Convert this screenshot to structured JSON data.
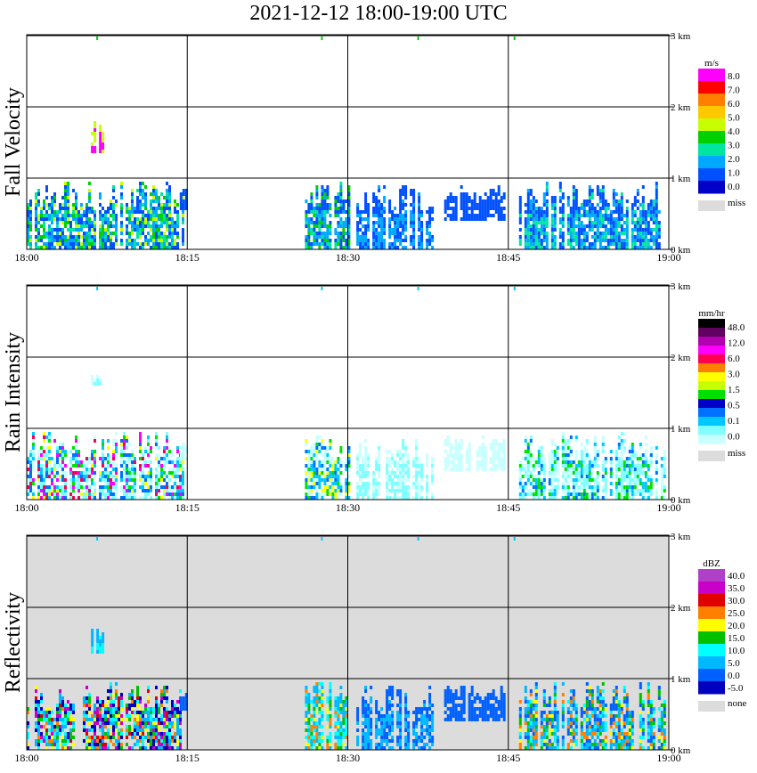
{
  "title": "2021-12-12   18:00-19:00 UTC",
  "colors": {
    "missing": "#dcdcdc",
    "axis": "#000000"
  },
  "chart_data": [
    {
      "type": "heatmap",
      "ylabel": "Fall Velocity",
      "x_tick_labels": [
        "18:00",
        "18:15",
        "18:30",
        "18:45",
        "19:00"
      ],
      "y_tick_labels": [
        "0 km",
        "1 km",
        "2 km",
        "3 km"
      ],
      "ylim_km": [
        0,
        3.1
      ],
      "background": "white",
      "colorbar": {
        "unit": "m/s",
        "labels": [
          "8.0",
          "7.0",
          "6.0",
          "5.0",
          "4.0",
          "3.0",
          "2.0",
          "1.0",
          "0.0"
        ],
        "colors": [
          "#ff00ff",
          "#ff0000",
          "#ff7f00",
          "#ffc800",
          "#c8ff00",
          "#00d000",
          "#00e6a0",
          "#00a8ff",
          "#0050ff",
          "#0000c8"
        ],
        "missing_label": "miss"
      },
      "echoes": [
        {
          "t0": 0.0,
          "t1": 14.5,
          "z0": 0.0,
          "z1": 0.95,
          "levels": [
            1,
            2,
            3,
            4,
            5
          ]
        },
        {
          "t0": 14.3,
          "t1": 15.0,
          "z0": 0.55,
          "z1": 0.85,
          "levels": [
            1
          ]
        },
        {
          "t0": 26.0,
          "t1": 30.0,
          "z0": 0.0,
          "z1": 0.95,
          "levels": [
            1,
            2,
            3,
            4
          ]
        },
        {
          "t0": 30.8,
          "t1": 38.0,
          "z0": 0.0,
          "z1": 0.9,
          "levels": [
            1,
            2
          ]
        },
        {
          "t0": 39.0,
          "t1": 44.5,
          "z0": 0.4,
          "z1": 0.9,
          "levels": [
            1
          ]
        },
        {
          "t0": 46.0,
          "t1": 59.5,
          "z0": 0.0,
          "z1": 0.95,
          "levels": [
            1,
            2,
            3
          ]
        },
        {
          "t0": 6.0,
          "t1": 7.0,
          "z0": 1.35,
          "z1": 1.8,
          "levels": [
            5,
            9
          ]
        }
      ]
    },
    {
      "type": "heatmap",
      "ylabel": "Rain Intensity",
      "x_tick_labels": [
        "18:00",
        "18:15",
        "18:30",
        "18:45",
        "19:00"
      ],
      "y_tick_labels": [
        "0 km",
        "1 km",
        "2 km",
        "3 km"
      ],
      "ylim_km": [
        0,
        3.1
      ],
      "background": "white",
      "colorbar": {
        "unit": "mm/hr",
        "labels": [
          "48.0",
          "12.0",
          "6.0",
          "3.0",
          "1.5",
          "0.5",
          "0.1",
          "0.0"
        ],
        "colors": [
          "#000000",
          "#600060",
          "#b000b0",
          "#ff00ff",
          "#ff0050",
          "#ff7f00",
          "#ffff00",
          "#c8ff00",
          "#00e000",
          "#0000c8",
          "#0070ff",
          "#00c8ff",
          "#7fffff",
          "#c8ffff"
        ],
        "missing_label": "miss"
      },
      "echoes": [
        {
          "t0": 0.0,
          "t1": 14.5,
          "z0": 0.0,
          "z1": 0.95,
          "levels": [
            0,
            1,
            2,
            3,
            5,
            7,
            9,
            10
          ]
        },
        {
          "t0": 14.3,
          "t1": 15.0,
          "z0": 0.55,
          "z1": 0.85,
          "levels": [
            0
          ]
        },
        {
          "t0": 26.0,
          "t1": 30.0,
          "z0": 0.0,
          "z1": 0.95,
          "levels": [
            0,
            2,
            3,
            5,
            7
          ]
        },
        {
          "t0": 30.8,
          "t1": 38.0,
          "z0": 0.0,
          "z1": 0.9,
          "levels": [
            0,
            1
          ]
        },
        {
          "t0": 39.0,
          "t1": 44.5,
          "z0": 0.4,
          "z1": 0.9,
          "levels": [
            0
          ]
        },
        {
          "t0": 46.0,
          "t1": 59.5,
          "z0": 0.0,
          "z1": 0.95,
          "levels": [
            0,
            1,
            2,
            3,
            5
          ]
        },
        {
          "t0": 6.0,
          "t1": 7.0,
          "z0": 1.6,
          "z1": 1.75,
          "levels": [
            0,
            1
          ]
        }
      ]
    },
    {
      "type": "heatmap",
      "ylabel": "Reflectivity",
      "x_tick_labels": [
        "18:00",
        "18:15",
        "18:30",
        "18:45",
        "19:00"
      ],
      "y_tick_labels": [
        "0 km",
        "1 km",
        "2 km",
        "3 km"
      ],
      "ylim_km": [
        0,
        3.1
      ],
      "background": "gray",
      "colorbar": {
        "unit": "dBZ",
        "labels": [
          "40.0",
          "35.0",
          "30.0",
          "25.0",
          "20.0",
          "15.0",
          "10.0",
          "5.0",
          "0.0",
          "-5.0"
        ],
        "colors": [
          "#b040c8",
          "#c800c8",
          "#e00000",
          "#ff7f00",
          "#ffff00",
          "#00c000",
          "#00ffff",
          "#00b8ff",
          "#0060ff",
          "#0000c0"
        ],
        "missing_label": "none"
      },
      "echoes": [
        {
          "t0": 0.0,
          "t1": 14.5,
          "z0": 0.0,
          "z1": 0.95,
          "levels": [
            0,
            2,
            3,
            4,
            5,
            6,
            7,
            8
          ]
        },
        {
          "t0": 14.3,
          "t1": 15.0,
          "z0": 0.55,
          "z1": 0.85,
          "levels": [
            1
          ]
        },
        {
          "t0": 26.0,
          "t1": 30.0,
          "z0": 0.0,
          "z1": 0.95,
          "levels": [
            2,
            3,
            4,
            5,
            6
          ]
        },
        {
          "t0": 30.8,
          "t1": 38.0,
          "z0": 0.0,
          "z1": 0.9,
          "levels": [
            1,
            2
          ]
        },
        {
          "t0": 39.0,
          "t1": 44.5,
          "z0": 0.4,
          "z1": 0.9,
          "levels": [
            1
          ]
        },
        {
          "t0": 46.0,
          "t1": 59.5,
          "z0": 0.0,
          "z1": 0.95,
          "levels": [
            1,
            2,
            3,
            4,
            5,
            6
          ]
        },
        {
          "t0": 6.0,
          "t1": 7.0,
          "z0": 1.35,
          "z1": 1.75,
          "levels": [
            2,
            3
          ]
        }
      ]
    }
  ]
}
